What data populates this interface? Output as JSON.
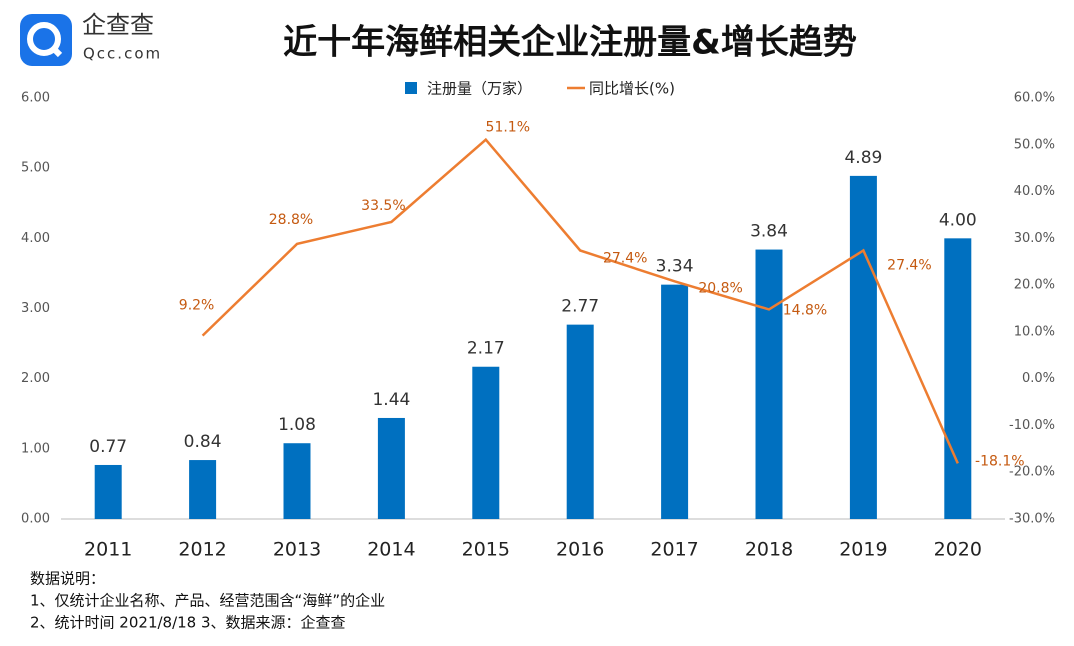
{
  "logo": {
    "name": "企查查",
    "domain": "Qcc.com"
  },
  "chart_data": {
    "type": "bar-line",
    "title": "近十年海鲜相关企业注册量&增长趋势",
    "categories": [
      "2011",
      "2012",
      "2013",
      "2014",
      "2015",
      "2016",
      "2017",
      "2018",
      "2019",
      "2020"
    ],
    "series": [
      {
        "name": "注册量（万家）",
        "type": "bar",
        "color": "#0070c0",
        "values": [
          0.77,
          0.84,
          1.08,
          1.44,
          2.17,
          2.77,
          3.34,
          3.84,
          4.89,
          4.0
        ],
        "value_labels": [
          "0.77",
          "0.84",
          "1.08",
          "1.44",
          "2.17",
          "2.77",
          "3.34",
          "3.84",
          "4.89",
          "4.00"
        ]
      },
      {
        "name": "同比增长(%)",
        "type": "line",
        "axis": "y2",
        "color": "#ed7d31",
        "values": [
          null,
          9.2,
          28.8,
          33.5,
          51.1,
          27.4,
          20.8,
          14.8,
          27.4,
          -18.1
        ],
        "value_labels": [
          null,
          "9.2%",
          "28.8%",
          "33.5%",
          "51.1%",
          "27.4%",
          "20.8%",
          "14.8%",
          "27.4%",
          "-18.1%"
        ]
      }
    ],
    "ylim": [
      0,
      6
    ],
    "yticks": [
      {
        "value": 0,
        "label": "0.00"
      },
      {
        "value": 1,
        "label": "1.00"
      },
      {
        "value": 2,
        "label": "2.00"
      },
      {
        "value": 3,
        "label": "3.00"
      },
      {
        "value": 4,
        "label": "4.00"
      },
      {
        "value": 5,
        "label": "5.00"
      },
      {
        "value": 6,
        "label": "6.00"
      }
    ],
    "y2lim": [
      -30,
      60
    ],
    "y2ticks": [
      {
        "value": -30,
        "label": "-30.0%"
      },
      {
        "value": -20,
        "label": "-20.0%"
      },
      {
        "value": -10,
        "label": "-10.0%"
      },
      {
        "value": 0,
        "label": "0.0%"
      },
      {
        "value": 10,
        "label": "10.0%"
      },
      {
        "value": 20,
        "label": "20.0%"
      },
      {
        "value": 30,
        "label": "30.0%"
      },
      {
        "value": 40,
        "label": "40.0%"
      },
      {
        "value": 50,
        "label": "50.0%"
      },
      {
        "value": 60,
        "label": "60.0%"
      }
    ],
    "legend": "top",
    "grid": false
  },
  "notes": [
    "数据说明：",
    "1、仅统计企业名称、产品、经营范围含“海鲜”的企业",
    "2、统计时间 2021/8/18    3、数据来源：企查查"
  ]
}
